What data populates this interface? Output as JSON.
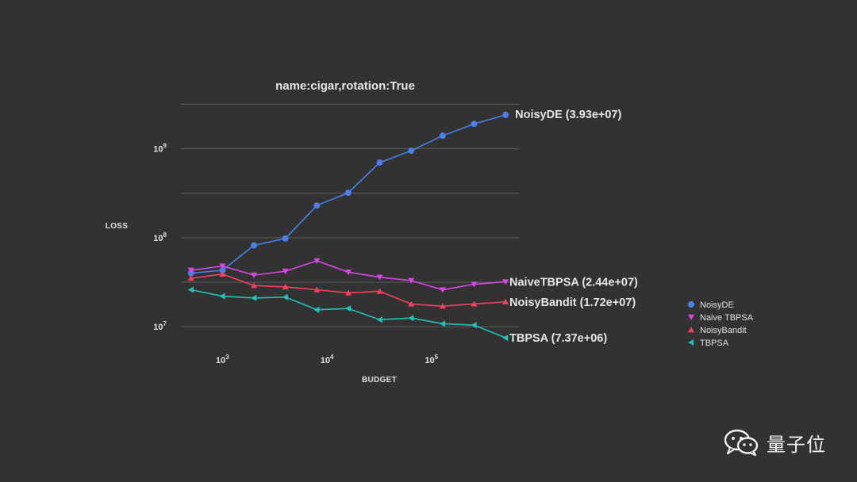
{
  "chart_data": {
    "type": "line",
    "title": "name:cigar,rotation:True",
    "xlabel": "BUDGET",
    "ylabel": "LOSS",
    "xscale": "log",
    "yscale": "log",
    "xlim": [
      400,
      700000
    ],
    "ylim": [
      6000000,
      4000000000
    ],
    "grid": "horizontal",
    "legend_position": "right",
    "x_ticks": [
      {
        "base": "10",
        "exp": "3",
        "value": 1000
      },
      {
        "base": "10",
        "exp": "4",
        "value": 10000
      },
      {
        "base": "10",
        "exp": "5",
        "value": 100000
      }
    ],
    "y_ticks": [
      {
        "base": "10",
        "exp": "7",
        "value": 10000000
      },
      {
        "base": "10",
        "exp": "8",
        "value": 100000000
      },
      {
        "base": "10",
        "exp": "9",
        "value": 1000000000
      }
    ],
    "x": [
      500,
      1000,
      2000,
      4000,
      8000,
      16000,
      32000,
      64000,
      128000,
      256000,
      512000
    ],
    "series": [
      {
        "name": "NoisyDE",
        "end_label": "NoisyDE (3.93e+07)",
        "color": "#4a7fe6",
        "marker": "circle",
        "values": [
          40000000,
          43000000,
          82000000,
          98000000,
          230000000,
          320000000,
          700000000,
          950000000,
          1400000000,
          1900000000,
          2400000000
        ]
      },
      {
        "name": "Naive TBPSA",
        "end_label": "NaiveTBPSA (2.44e+07)",
        "color": "#d946e6",
        "marker": "triangle-down",
        "values": [
          43000000,
          48000000,
          38000000,
          42000000,
          55000000,
          41000000,
          36000000,
          33000000,
          26000000,
          30000000,
          32000000
        ]
      },
      {
        "name": "NoisyBandit",
        "end_label": "NoisyBandit (1.72e+07)",
        "color": "#f0425e",
        "marker": "triangle-up",
        "values": [
          35000000,
          39000000,
          29000000,
          28000000,
          26000000,
          24000000,
          25000000,
          18000000,
          17000000,
          18000000,
          19000000
        ]
      },
      {
        "name": "TBPSA",
        "end_label": "TBPSA (7.37e+06)",
        "color": "#22c3b2",
        "marker": "triangle-left",
        "values": [
          26000000,
          22000000,
          21000000,
          21500000,
          15500000,
          16000000,
          12000000,
          12500000,
          10800000,
          10400000,
          7500000
        ]
      }
    ]
  },
  "watermark": {
    "text": "量子位",
    "icon": "wechat-icon"
  }
}
